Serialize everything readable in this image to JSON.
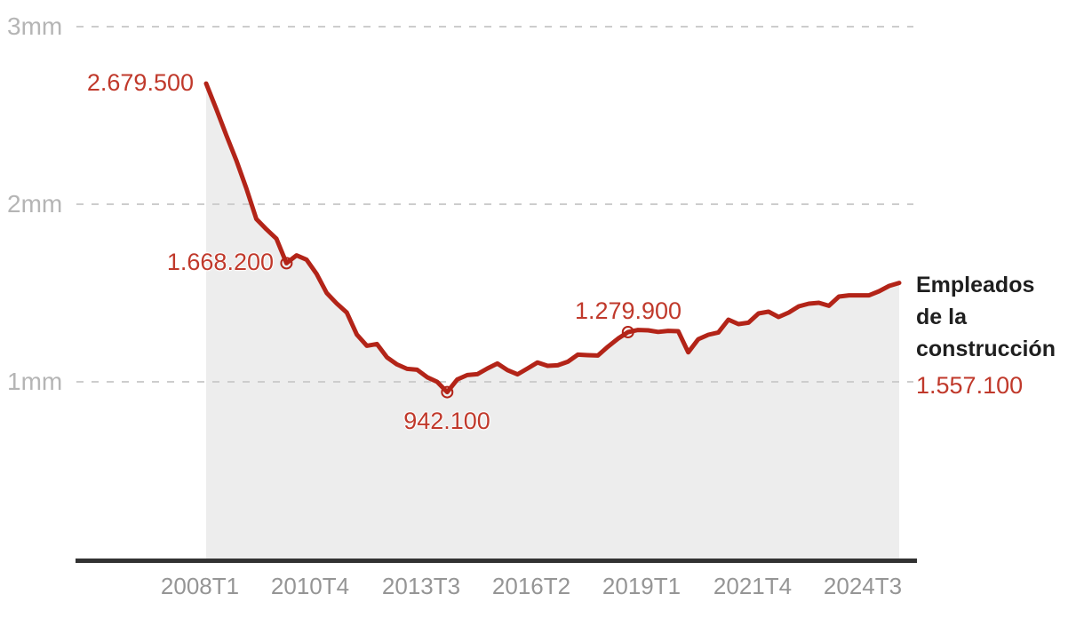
{
  "chart_data": {
    "type": "area",
    "title": "",
    "series_name": "Empleados de la construcción",
    "series_name_lines": [
      "Empleados",
      "de la",
      "construcción"
    ],
    "legend_position": "right",
    "grid": true,
    "ylim": [
      0,
      3000000
    ],
    "y_ticks": [
      {
        "label": "3mm",
        "value": 3000000
      },
      {
        "label": "2mm",
        "value": 2000000
      },
      {
        "label": "1mm",
        "value": 1000000
      }
    ],
    "x_ticks": [
      {
        "label": "2008T1",
        "index": 0
      },
      {
        "label": "2010T4",
        "index": 11
      },
      {
        "label": "2013T3",
        "index": 22
      },
      {
        "label": "2016T2",
        "index": 33
      },
      {
        "label": "2019T1",
        "index": 44
      },
      {
        "label": "2021T4",
        "index": 55
      },
      {
        "label": "2024T3",
        "index": 66
      }
    ],
    "quarters": [
      "2008T1",
      "2008T2",
      "2008T3",
      "2008T4",
      "2009T1",
      "2009T2",
      "2009T3",
      "2009T4",
      "2010T1",
      "2010T2",
      "2010T3",
      "2010T4",
      "2011T1",
      "2011T2",
      "2011T3",
      "2011T4",
      "2012T1",
      "2012T2",
      "2012T3",
      "2012T4",
      "2013T1",
      "2013T2",
      "2013T3",
      "2013T4",
      "2014T1",
      "2014T2",
      "2014T3",
      "2014T4",
      "2015T1",
      "2015T2",
      "2015T3",
      "2015T4",
      "2016T1",
      "2016T2",
      "2016T3",
      "2016T4",
      "2017T1",
      "2017T2",
      "2017T3",
      "2017T4",
      "2018T1",
      "2018T2",
      "2018T3",
      "2018T4",
      "2019T1",
      "2019T2",
      "2019T3",
      "2019T4",
      "2020T1",
      "2020T2",
      "2020T3",
      "2020T4",
      "2021T1",
      "2021T2",
      "2021T3",
      "2021T4",
      "2022T1",
      "2022T2",
      "2022T3",
      "2022T4",
      "2023T1",
      "2023T2",
      "2023T3",
      "2023T4",
      "2024T1",
      "2024T2",
      "2024T3",
      "2024T4",
      "2025T1",
      "2025T2"
    ],
    "values": [
      2679500,
      2538000,
      2390000,
      2248000,
      2090000,
      1917000,
      1859000,
      1806000,
      1668200,
      1712000,
      1688000,
      1608000,
      1500000,
      1441000,
      1390000,
      1266000,
      1203000,
      1213000,
      1138000,
      1098000,
      1073000,
      1068000,
      1026000,
      1000000,
      942100,
      1013000,
      1038000,
      1043000,
      1075000,
      1103000,
      1066000,
      1042000,
      1075000,
      1109000,
      1090000,
      1093000,
      1113000,
      1153000,
      1150000,
      1148000,
      1198000,
      1243000,
      1279900,
      1292000,
      1290000,
      1281000,
      1287000,
      1285000,
      1166000,
      1240000,
      1265000,
      1278000,
      1350000,
      1325000,
      1333000,
      1385000,
      1395000,
      1365000,
      1390000,
      1425000,
      1440000,
      1445000,
      1428000,
      1480000,
      1487000,
      1487000,
      1487000,
      1510000,
      1540000,
      1557100
    ],
    "annotations": [
      {
        "quarter": "2008T1",
        "index": 0,
        "value": 2679500,
        "label": "2.679.500",
        "marker": false,
        "placement": "left"
      },
      {
        "quarter": "2010T1",
        "index": 8,
        "value": 1668200,
        "label": "1.668.200",
        "marker": true,
        "placement": "left"
      },
      {
        "quarter": "2014T1",
        "index": 24,
        "value": 942100,
        "label": "942.100",
        "marker": true,
        "placement": "below"
      },
      {
        "quarter": "2018T3",
        "index": 42,
        "value": 1279900,
        "label": "1.279.900",
        "marker": true,
        "placement": "above"
      },
      {
        "quarter": "2025T2",
        "index": 69,
        "value": 1557100,
        "label": "1.557.100",
        "marker": false,
        "placement": "right"
      }
    ],
    "colors": {
      "line": "#b32418",
      "area": "#ededed",
      "axis": "#323232",
      "grid": "#cdcdcd",
      "label_red": "#c0392b",
      "x_tick_gray": "#959595",
      "y_tick_gray": "#b5b5b5",
      "series_name_black": "#1f1f1f"
    }
  }
}
